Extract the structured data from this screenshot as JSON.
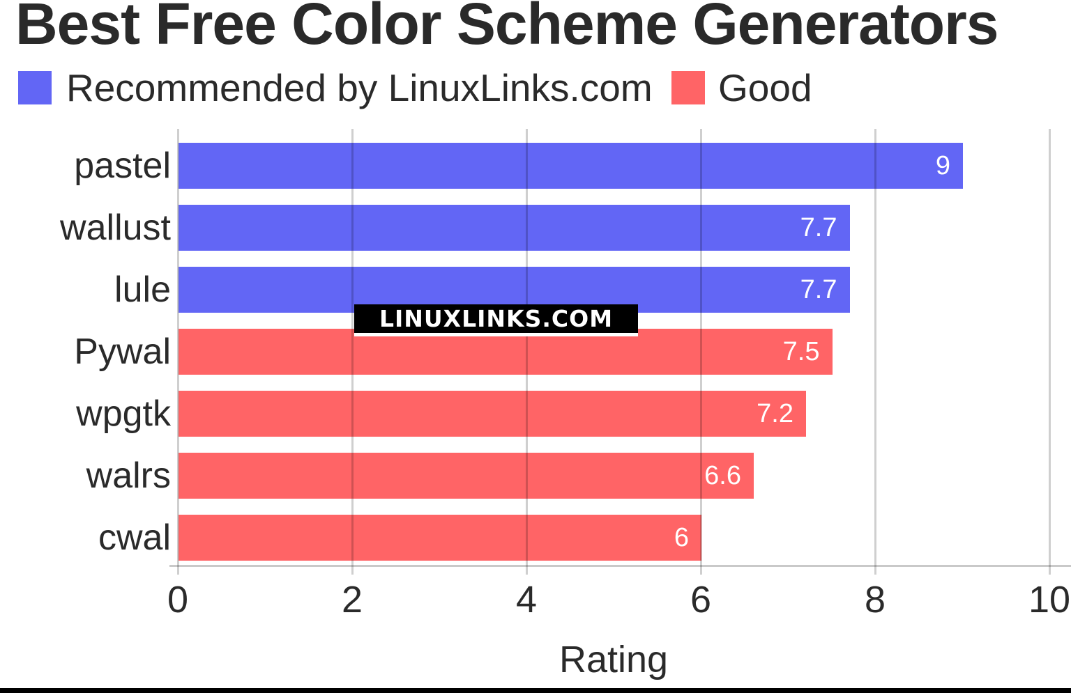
{
  "header": {
    "title": "Best Free Color Scheme Generators"
  },
  "legend": {
    "items": [
      {
        "label": "Recommended by LinuxLinks.com",
        "color": "#6266f5"
      },
      {
        "label": "Good",
        "color": "#ff6466"
      }
    ]
  },
  "watermark": {
    "text": "LINUXLINKS.COM",
    "bg": "#000000",
    "fg": "#ffffff"
  },
  "colors": {
    "recommended": "#6266f5",
    "good": "#ff6466",
    "gridline": "#cccccc",
    "title_text": "#2a2a2a",
    "bar_value_text": "#ffffff"
  },
  "chart_data": {
    "type": "bar",
    "orientation": "horizontal",
    "title": "Best Free Color Scheme Generators",
    "xlabel": "Rating",
    "ylabel": "",
    "xlim": [
      0,
      10
    ],
    "xticks": [
      "0",
      "2",
      "4",
      "6",
      "8",
      "10"
    ],
    "xtick_values": [
      0,
      2,
      4,
      6,
      8,
      10
    ],
    "grid": true,
    "legend_position": "top",
    "categories": [
      "pastel",
      "wallust",
      "lule",
      "Pywal",
      "wpgtk",
      "walrs",
      "cwal"
    ],
    "values": [
      9,
      7.7,
      7.7,
      7.5,
      7.2,
      6.6,
      6
    ],
    "value_labels": [
      "9",
      "7.7",
      "7.7",
      "7.5",
      "7.2",
      "6.6",
      "6"
    ],
    "groups": [
      "recommended",
      "recommended",
      "recommended",
      "good",
      "good",
      "good",
      "good"
    ],
    "series": [
      {
        "name": "Recommended by LinuxLinks.com",
        "color": "#6266f5",
        "categories": [
          "pastel",
          "wallust",
          "lule"
        ],
        "values": [
          9,
          7.7,
          7.7
        ]
      },
      {
        "name": "Good",
        "color": "#ff6466",
        "categories": [
          "Pywal",
          "wpgtk",
          "walrs",
          "cwal"
        ],
        "values": [
          7.5,
          7.2,
          6.6,
          6
        ]
      }
    ]
  }
}
